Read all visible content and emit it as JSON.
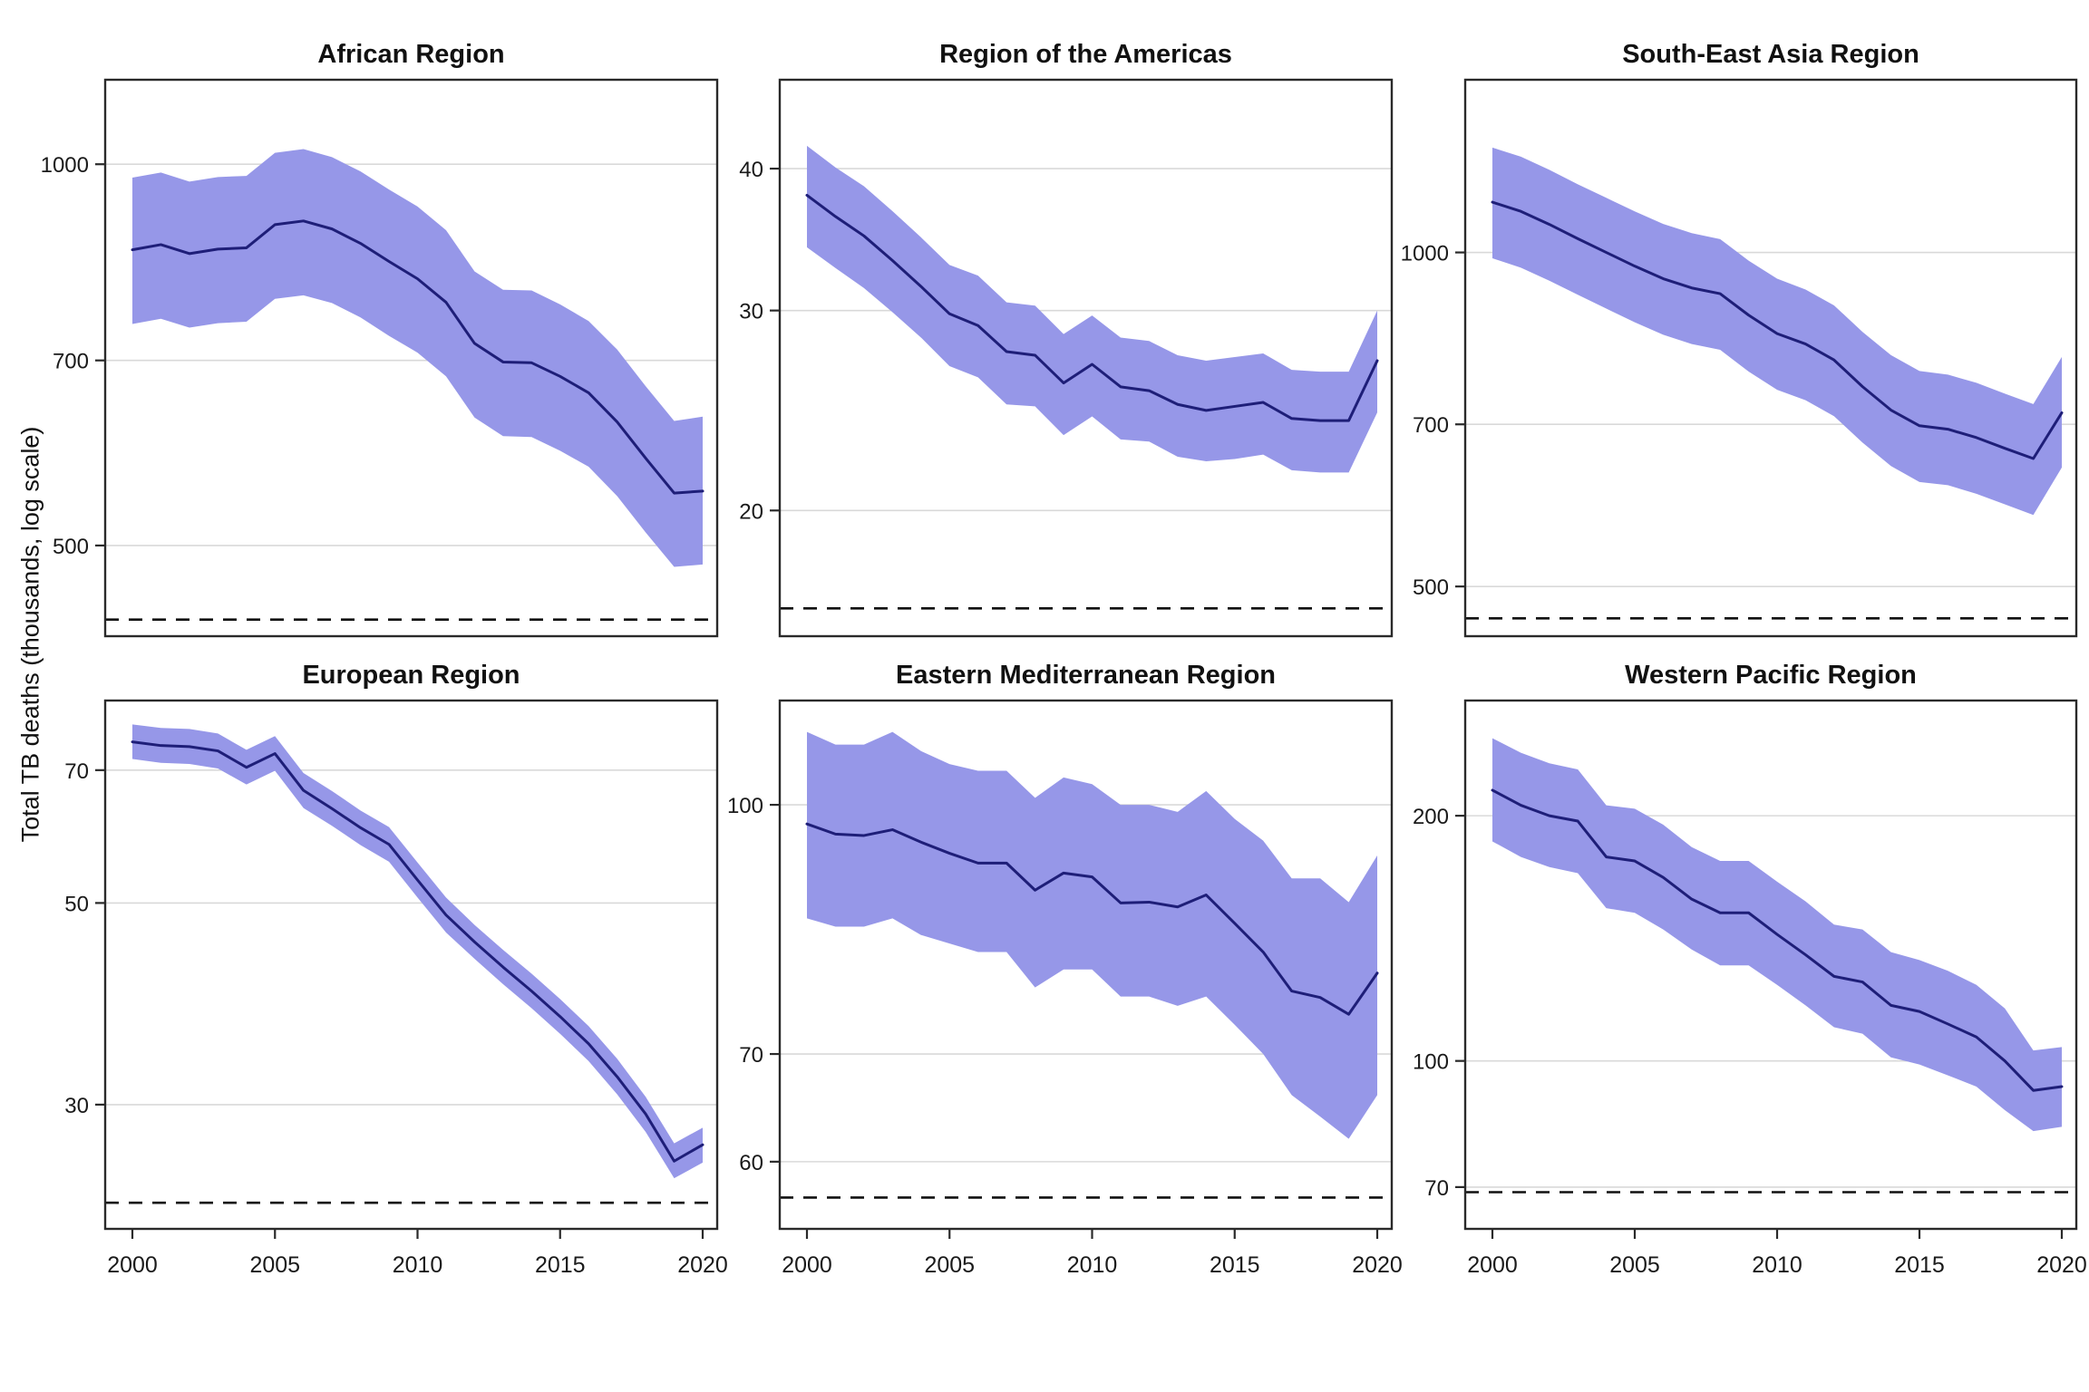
{
  "figure": {
    "y_axis_label": "Total TB deaths (thousands, log scale)",
    "x_tick_labels": [
      "2000",
      "2005",
      "2010",
      "2015",
      "2020"
    ],
    "x_tick_years": [
      2000,
      2005,
      2010,
      2015,
      2020
    ],
    "colors": {
      "band": "#9697e8",
      "line": "#1e1e78",
      "grid": "#d9d9d9",
      "border": "#2a2a2a",
      "target_line": "#111111",
      "background": "#ffffff"
    }
  },
  "chart_data": [
    {
      "type": "line",
      "title": "African Region",
      "row": 0,
      "col": 0,
      "scale": "log10",
      "grid": true,
      "legend": false,
      "years": [
        2000,
        2001,
        2002,
        2003,
        2004,
        2005,
        2006,
        2007,
        2008,
        2009,
        2010,
        2011,
        2012,
        2013,
        2014,
        2015,
        2016,
        2017,
        2018,
        2019,
        2020
      ],
      "series": [
        {
          "name": "estimate",
          "values": [
            856,
            864,
            850,
            857,
            859,
            896,
            902,
            889,
            866,
            838,
            812,
            778,
            722,
            698,
            697,
            680,
            660,
            626,
            586,
            550,
            552
          ]
        },
        {
          "name": "upper_bound",
          "values": [
            976,
            985,
            969,
            977,
            979,
            1021,
            1028,
            1013,
            987,
            955,
            926,
            887,
            823,
            796,
            795,
            775,
            752,
            714,
            668,
            627,
            632
          ]
        },
        {
          "name": "lower_bound",
          "values": [
            748,
            755,
            743,
            749,
            751,
            783,
            788,
            777,
            757,
            732,
            710,
            680,
            631,
            610,
            609,
            594,
            577,
            547,
            512,
            481,
            483
          ]
        }
      ],
      "yticks": [
        1000,
        700,
        500
      ],
      "ylim": [
        424,
        1166
      ],
      "reference_dashed_line": 437
    },
    {
      "type": "line",
      "title": "Region of the Americas",
      "row": 0,
      "col": 1,
      "scale": "log10",
      "grid": true,
      "legend": false,
      "years": [
        2000,
        2001,
        2002,
        2003,
        2004,
        2005,
        2006,
        2007,
        2008,
        2009,
        2010,
        2011,
        2012,
        2013,
        2014,
        2015,
        2016,
        2017,
        2018,
        2019,
        2020
      ],
      "series": [
        {
          "name": "estimate",
          "values": [
            37.9,
            36.3,
            34.9,
            33.2,
            31.5,
            29.8,
            29.1,
            27.6,
            27.4,
            25.9,
            26.9,
            25.7,
            25.5,
            24.8,
            24.5,
            24.7,
            24.9,
            24.1,
            24.0,
            24.0,
            27.1
          ]
        },
        {
          "name": "upper_bound",
          "values": [
            41.9,
            40.1,
            38.6,
            36.7,
            34.8,
            32.9,
            32.2,
            30.5,
            30.3,
            28.6,
            29.7,
            28.4,
            28.2,
            27.4,
            27.1,
            27.3,
            27.5,
            26.6,
            26.5,
            26.5,
            30.0
          ]
        },
        {
          "name": "lower_bound",
          "values": [
            34.1,
            32.7,
            31.4,
            29.9,
            28.4,
            26.8,
            26.2,
            24.8,
            24.7,
            23.3,
            24.2,
            23.1,
            23.0,
            22.3,
            22.1,
            22.2,
            22.4,
            21.7,
            21.6,
            21.6,
            24.4
          ]
        }
      ],
      "yticks": [
        40,
        30,
        20
      ],
      "ylim": [
        15.5,
        47.9
      ],
      "reference_dashed_line": 16.4
    },
    {
      "type": "line",
      "title": "South-East Asia Region",
      "row": 0,
      "col": 2,
      "scale": "log10",
      "grid": true,
      "legend": false,
      "years": [
        2000,
        2001,
        2002,
        2003,
        2004,
        2005,
        2006,
        2007,
        2008,
        2009,
        2010,
        2011,
        2012,
        2013,
        2014,
        2015,
        2016,
        2017,
        2018,
        2019,
        2020
      ],
      "series": [
        {
          "name": "estimate",
          "values": [
            1110,
            1089,
            1060,
            1029,
            1000,
            972,
            947,
            929,
            918,
            878,
            845,
            827,
            800,
            757,
            721,
            698,
            693,
            681,
            666,
            652,
            717
          ]
        },
        {
          "name": "upper_bound",
          "values": [
            1243,
            1220,
            1187,
            1152,
            1120,
            1089,
            1061,
            1041,
            1028,
            983,
            947,
            926,
            896,
            848,
            808,
            782,
            776,
            763,
            746,
            730,
            805
          ]
        },
        {
          "name": "lower_bound",
          "values": [
            988,
            969,
            943,
            916,
            890,
            865,
            843,
            827,
            817,
            781,
            752,
            736,
            712,
            674,
            642,
            621,
            617,
            606,
            593,
            580,
            640
          ]
        }
      ],
      "yticks": [
        1000,
        700,
        500
      ],
      "ylim": [
        451,
        1431
      ],
      "reference_dashed_line": 468
    },
    {
      "type": "line",
      "title": "European Region",
      "row": 1,
      "col": 0,
      "scale": "log10",
      "grid": true,
      "legend": false,
      "years": [
        2000,
        2001,
        2002,
        2003,
        2004,
        2005,
        2006,
        2007,
        2008,
        2009,
        2010,
        2011,
        2012,
        2013,
        2014,
        2015,
        2016,
        2017,
        2018,
        2019,
        2020
      ],
      "series": [
        {
          "name": "estimate",
          "values": [
            75.2,
            74.5,
            74.3,
            73.5,
            70.5,
            73.0,
            66.5,
            63.5,
            60.5,
            58.0,
            53.0,
            48.5,
            45.3,
            42.5,
            40.0,
            37.5,
            35.0,
            32.2,
            29.3,
            26.0,
            27.1
          ]
        },
        {
          "name": "upper_bound",
          "values": [
            78.6,
            77.9,
            77.7,
            76.8,
            73.7,
            76.3,
            69.5,
            66.4,
            63.2,
            60.6,
            55.4,
            50.7,
            47.3,
            44.4,
            41.8,
            39.2,
            36.6,
            33.7,
            30.6,
            27.2,
            28.3
          ]
        },
        {
          "name": "lower_bound",
          "values": [
            72.0,
            71.3,
            71.1,
            70.3,
            67.5,
            69.9,
            63.6,
            60.8,
            57.9,
            55.5,
            50.7,
            46.4,
            43.4,
            40.7,
            38.3,
            35.9,
            33.5,
            30.8,
            28.0,
            24.9,
            25.9
          ]
        }
      ],
      "yticks": [
        70,
        50,
        30
      ],
      "ylim": [
        21.9,
        83.5
      ],
      "reference_dashed_line": 23.4
    },
    {
      "type": "line",
      "title": "Eastern Mediterranean Region",
      "row": 1,
      "col": 1,
      "scale": "log10",
      "grid": true,
      "legend": false,
      "years": [
        2000,
        2001,
        2002,
        2003,
        2004,
        2005,
        2006,
        2007,
        2008,
        2009,
        2010,
        2011,
        2012,
        2013,
        2014,
        2015,
        2016,
        2017,
        2018,
        2019,
        2020
      ],
      "series": [
        {
          "name": "estimate",
          "values": [
            97.3,
            95.9,
            95.7,
            96.5,
            94.8,
            93.3,
            92.0,
            92.0,
            88.5,
            90.7,
            90.2,
            86.9,
            87.0,
            86.4,
            87.9,
            84.4,
            81.0,
            76.6,
            75.9,
            74.1,
            78.6
          ]
        },
        {
          "name": "upper_bound",
          "values": [
            111,
            109,
            109,
            111,
            108,
            106,
            105,
            105,
            101,
            104,
            103,
            100,
            100,
            99,
            102,
            98,
            95,
            90,
            90,
            87,
            93
          ]
        },
        {
          "name": "lower_bound",
          "values": [
            85,
            84,
            84,
            85,
            83,
            82,
            81,
            81,
            77,
            79,
            79,
            76,
            76,
            75,
            76,
            73,
            70,
            66,
            64,
            62,
            66
          ]
        }
      ],
      "yticks": [
        100,
        70,
        60
      ],
      "ylim": [
        54.5,
        116.1
      ],
      "reference_dashed_line": 57
    },
    {
      "type": "line",
      "title": "Western Pacific Region",
      "row": 1,
      "col": 2,
      "scale": "log10",
      "grid": true,
      "legend": false,
      "years": [
        2000,
        2001,
        2002,
        2003,
        2004,
        2005,
        2006,
        2007,
        2008,
        2009,
        2010,
        2011,
        2012,
        2013,
        2014,
        2015,
        2016,
        2017,
        2018,
        2019,
        2020
      ],
      "series": [
        {
          "name": "estimate",
          "values": [
            215,
            206,
            200,
            197,
            178,
            176,
            168,
            158,
            152,
            152,
            143,
            135,
            127,
            125,
            117,
            115,
            111,
            107,
            100,
            92,
            93
          ]
        },
        {
          "name": "upper_bound",
          "values": [
            249,
            239,
            232,
            228,
            206,
            204,
            195,
            183,
            176,
            176,
            166,
            157,
            147,
            145,
            136,
            133,
            129,
            124,
            116,
            103,
            104
          ]
        },
        {
          "name": "lower_bound",
          "values": [
            186,
            178,
            173,
            170,
            154,
            152,
            145,
            137,
            131,
            131,
            124,
            117,
            110,
            108,
            101,
            99,
            96,
            93,
            87,
            82,
            83
          ]
        }
      ],
      "yticks": [
        200,
        100,
        70
      ],
      "ylim": [
        62.2,
        277
      ],
      "reference_dashed_line": 69
    }
  ]
}
